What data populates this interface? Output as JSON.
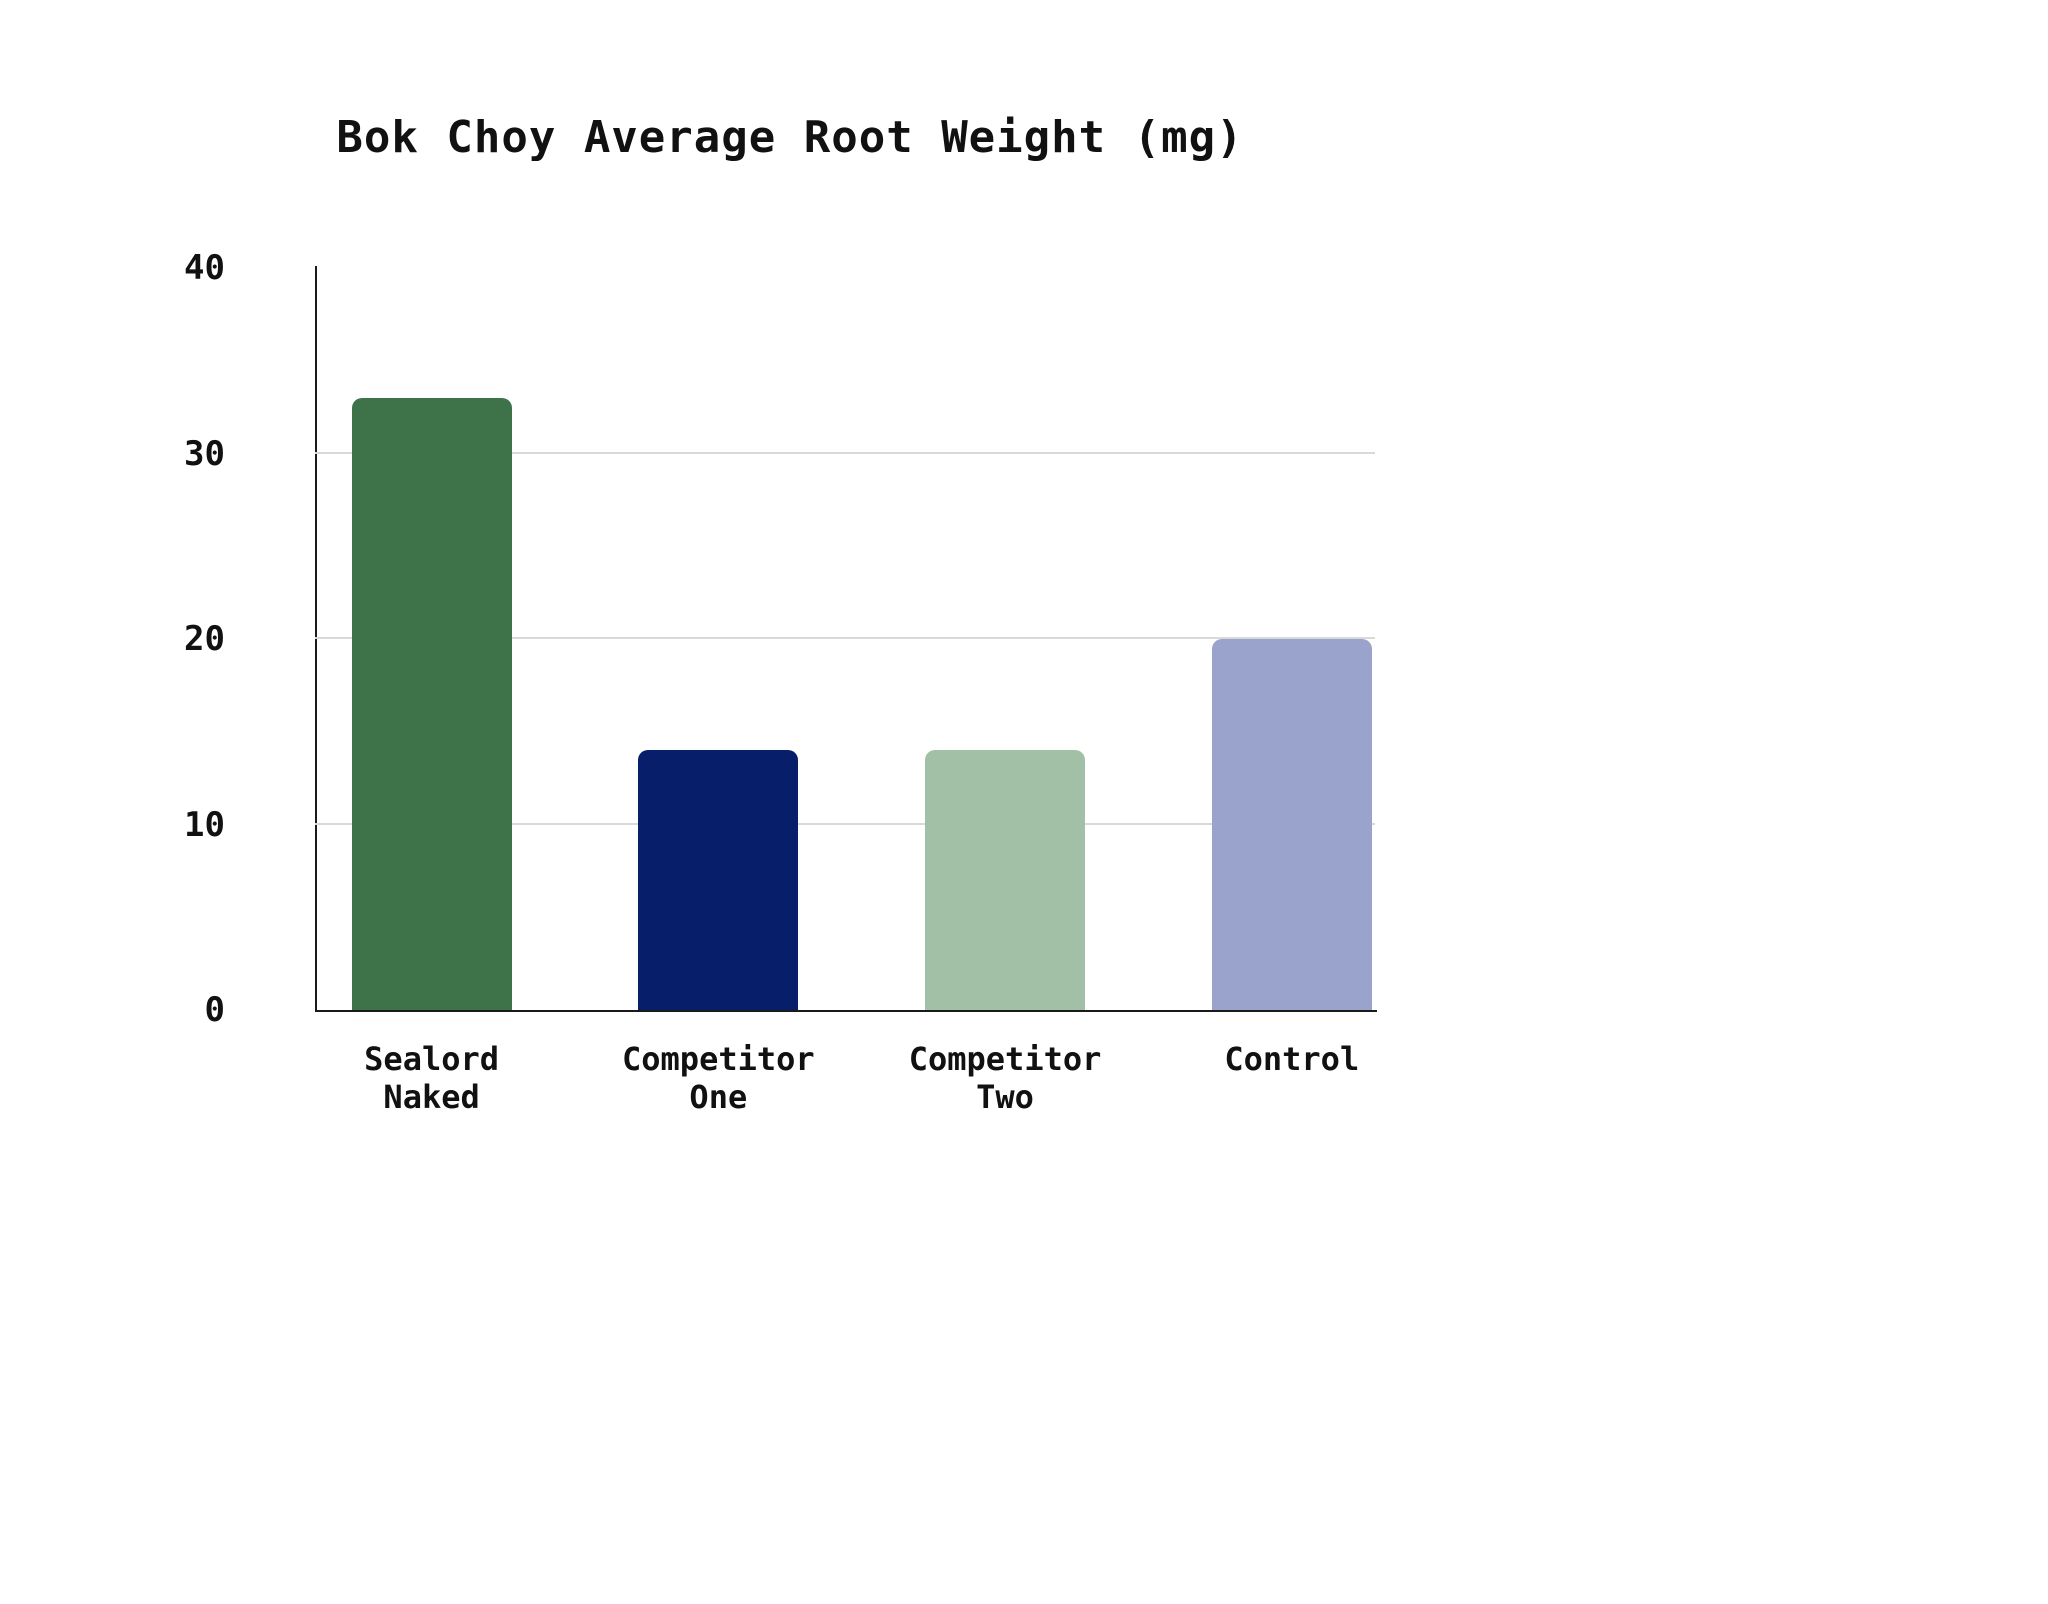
{
  "chart_data": {
    "type": "bar",
    "title": "Bok Choy Average Root Weight (mg)",
    "categories": [
      "Sealord\nNaked",
      "Competitor\nOne",
      "Competitor\nTwo",
      "Control"
    ],
    "values": [
      33,
      14,
      14,
      20
    ],
    "colors": [
      "#3E7249",
      "#071F6B",
      "#A2C0A5",
      "#99A3CB"
    ],
    "xlabel": "",
    "ylabel": "",
    "ylim": [
      0,
      40
    ],
    "yticks": [
      0,
      10,
      20,
      30,
      40
    ],
    "gridlines": [
      10,
      20,
      30
    ],
    "grid": "horizontal",
    "legend_position": "none"
  }
}
